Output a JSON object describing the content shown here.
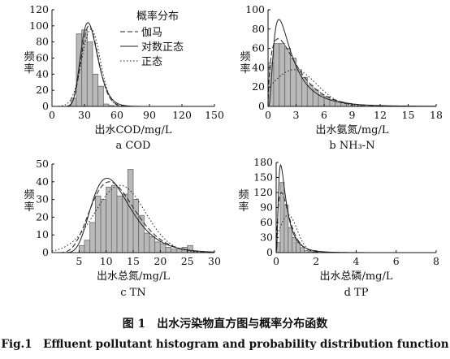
{
  "legend": {
    "title": "概率分布",
    "items": [
      {
        "label": "伽马",
        "dash": "6,3"
      },
      {
        "label": "对数正态",
        "dash": ""
      },
      {
        "label": "正态",
        "dash": "1.5,2.5"
      }
    ]
  },
  "figure_caption_zh": "图 1　出水污染物直方图与概率分布函数",
  "figure_caption_en": "Fig.1　Effluent pollutant histogram and probability distribution function",
  "chart_data": [
    {
      "type": "bar",
      "sublabel": "a COD",
      "xlabel": "出水COD/mg/L",
      "ylabel": "频率",
      "xlim": [
        0,
        150
      ],
      "ylim": [
        0,
        120
      ],
      "xticks": [
        0,
        30,
        60,
        90,
        120,
        150
      ],
      "yticks": [
        0,
        20,
        40,
        60,
        80,
        100,
        120
      ],
      "bin_width": 5,
      "bins": [
        {
          "x": 20,
          "y": 10
        },
        {
          "x": 25,
          "y": 90
        },
        {
          "x": 30,
          "y": 95
        },
        {
          "x": 35,
          "y": 80
        },
        {
          "x": 40,
          "y": 40
        },
        {
          "x": 45,
          "y": 25
        },
        {
          "x": 50,
          "y": 3
        },
        {
          "x": 55,
          "y": 1
        }
      ],
      "curves": [
        {
          "name": "伽马",
          "dist": "gamma",
          "mean": 36,
          "sd": 8,
          "peak": 100
        },
        {
          "name": "对数正态",
          "dist": "lognormal",
          "mean": 36,
          "sd": 8.5,
          "peak": 104
        },
        {
          "name": "正态",
          "dist": "normal",
          "mean": 36,
          "sd": 8.5,
          "peak": 96
        }
      ]
    },
    {
      "type": "bar",
      "sublabel": "b NH₃-N",
      "xlabel": "出水氨氮/mg/L",
      "ylabel": "频率",
      "xlim": [
        0,
        18
      ],
      "ylim": [
        0,
        100
      ],
      "xticks": [
        0,
        3,
        6,
        9,
        12,
        15,
        18
      ],
      "yticks": [
        0,
        20,
        40,
        60,
        80,
        100
      ],
      "bin_width": 0.6,
      "bins": [
        {
          "x": 0.3,
          "y": 45
        },
        {
          "x": 0.9,
          "y": 65
        },
        {
          "x": 1.5,
          "y": 65
        },
        {
          "x": 2.1,
          "y": 60
        },
        {
          "x": 2.7,
          "y": 50
        },
        {
          "x": 3.3,
          "y": 38
        },
        {
          "x": 3.9,
          "y": 30
        },
        {
          "x": 4.5,
          "y": 22
        },
        {
          "x": 5.1,
          "y": 17
        },
        {
          "x": 5.7,
          "y": 12
        },
        {
          "x": 6.3,
          "y": 10
        },
        {
          "x": 6.9,
          "y": 7
        },
        {
          "x": 7.5,
          "y": 5
        },
        {
          "x": 8.1,
          "y": 4
        },
        {
          "x": 8.7,
          "y": 3
        },
        {
          "x": 9.3,
          "y": 2
        },
        {
          "x": 9.9,
          "y": 1
        }
      ],
      "curves": [
        {
          "name": "伽马",
          "dist": "gamma",
          "mean": 2.8,
          "sd": 2.2,
          "peak": 70
        },
        {
          "name": "对数正态",
          "dist": "lognormal",
          "mean": 2.8,
          "sd": 2.5,
          "peak": 90
        },
        {
          "name": "正态",
          "dist": "normal",
          "mean": 2.8,
          "sd": 2.4,
          "peak": 38
        }
      ]
    },
    {
      "type": "bar",
      "sublabel": "c TN",
      "xlabel": "出水总氮/mg/L",
      "ylabel": "频率",
      "xlim": [
        0,
        30
      ],
      "ylim": [
        0,
        50
      ],
      "xticks": [
        5,
        10,
        15,
        20,
        25,
        30
      ],
      "yticks": [
        0,
        10,
        20,
        30,
        40,
        50
      ],
      "bin_width": 1,
      "bins": [
        {
          "x": 5.5,
          "y": 4
        },
        {
          "x": 6.5,
          "y": 7
        },
        {
          "x": 7.5,
          "y": 17
        },
        {
          "x": 8.5,
          "y": 32
        },
        {
          "x": 9.5,
          "y": 30
        },
        {
          "x": 10.5,
          "y": 37
        },
        {
          "x": 11.5,
          "y": 38
        },
        {
          "x": 12.5,
          "y": 32
        },
        {
          "x": 13.5,
          "y": 33
        },
        {
          "x": 14.5,
          "y": 47
        },
        {
          "x": 15.5,
          "y": 30
        },
        {
          "x": 16.5,
          "y": 21
        },
        {
          "x": 17.5,
          "y": 11
        },
        {
          "x": 18.5,
          "y": 9
        },
        {
          "x": 19.5,
          "y": 6
        },
        {
          "x": 20.5,
          "y": 5
        },
        {
          "x": 21.5,
          "y": 3
        },
        {
          "x": 22.5,
          "y": 2
        },
        {
          "x": 23.5,
          "y": 2
        },
        {
          "x": 24.5,
          "y": 3
        },
        {
          "x": 25.5,
          "y": 4
        },
        {
          "x": 26.5,
          "y": 1
        }
      ],
      "curves": [
        {
          "name": "伽马",
          "dist": "gamma",
          "mean": 12.2,
          "sd": 4.4,
          "peak": 40
        },
        {
          "name": "对数正态",
          "dist": "lognormal",
          "mean": 12.2,
          "sd": 4.4,
          "peak": 42
        },
        {
          "name": "正态",
          "dist": "normal",
          "mean": 12.6,
          "sd": 4.6,
          "peak": 38
        }
      ]
    },
    {
      "type": "bar",
      "sublabel": "d TP",
      "xlabel": "出水总磷/mg/L",
      "ylabel": "频率",
      "xlim": [
        0,
        8
      ],
      "ylim": [
        0,
        180
      ],
      "xticks": [
        0,
        2,
        4,
        6,
        8
      ],
      "yticks": [
        0,
        30,
        60,
        90,
        120,
        150,
        180
      ],
      "bin_width": 0.2,
      "bins": [
        {
          "x": 0.1,
          "y": 20
        },
        {
          "x": 0.3,
          "y": 140
        },
        {
          "x": 0.5,
          "y": 95
        },
        {
          "x": 0.7,
          "y": 50
        },
        {
          "x": 0.9,
          "y": 30
        },
        {
          "x": 1.1,
          "y": 20
        },
        {
          "x": 1.3,
          "y": 10
        },
        {
          "x": 1.5,
          "y": 4
        },
        {
          "x": 1.7,
          "y": 2
        },
        {
          "x": 1.9,
          "y": 1
        }
      ],
      "curves": [
        {
          "name": "伽马",
          "dist": "gamma",
          "mean": 0.55,
          "sd": 0.4,
          "peak": 120
        },
        {
          "name": "对数正态",
          "dist": "lognormal",
          "mean": 0.55,
          "sd": 0.5,
          "peak": 175
        },
        {
          "name": "正态",
          "dist": "normal",
          "mean": 0.6,
          "sd": 0.45,
          "peak": 75
        }
      ]
    }
  ]
}
